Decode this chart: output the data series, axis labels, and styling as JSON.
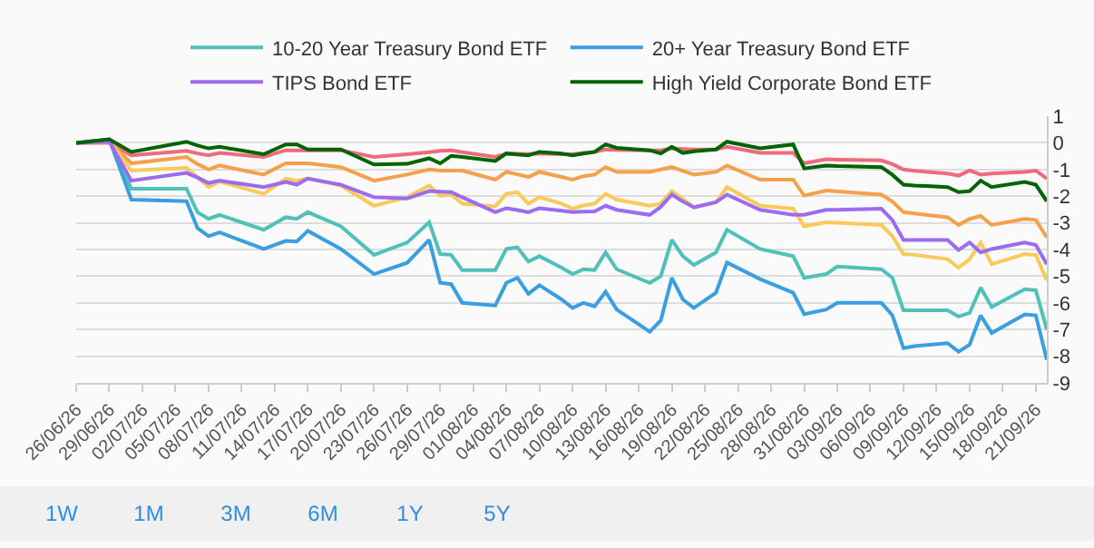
{
  "chart_data": {
    "type": "line",
    "legend": "top",
    "grid": "y",
    "marker": "none",
    "line_style": "solid",
    "annotations": [
      "1W",
      "1M",
      "3M",
      "6M",
      "1Y",
      "5Y"
    ],
    "x": [
      "--06-26",
      "--06-29",
      "--07-01",
      "--07-06",
      "--07-07",
      "--07-08",
      "--07-09",
      "--07-13",
      "--07-15",
      "--07-16",
      "--07-17",
      "--07-20",
      "--07-23",
      "--07-26",
      "--07-28",
      "--07-29",
      "--07-30",
      "--07-31",
      "--08-03",
      "--08-04",
      "--08-05",
      "--08-06",
      "--08-07",
      "--08-09",
      "--08-10",
      "--08-11",
      "--08-12",
      "--08-13",
      "--08-14",
      "--08-17",
      "--08-18",
      "--08-19",
      "--08-20",
      "--08-21",
      "--08-23",
      "--08-24",
      "--08-27",
      "--08-30",
      "--08-31",
      "--09-02",
      "--09-03",
      "--09-07",
      "--09-08",
      "--09-09",
      "--09-10",
      "--09-13",
      "--09-14",
      "--09-15",
      "--09-16",
      "--09-17",
      "--09-20",
      "--09-21",
      "--09-22"
    ],
    "xlim": [
      "--06-26",
      "--09-22"
    ],
    "xticks": [
      {
        "value": "--06-26",
        "label": "26/06/26"
      },
      {
        "value": "--06-29",
        "label": "29/06/26"
      },
      {
        "value": "--07-02",
        "label": "02/07/26"
      },
      {
        "value": "--07-05",
        "label": "05/07/26"
      },
      {
        "value": "--07-08",
        "label": "08/07/26"
      },
      {
        "value": "--07-11",
        "label": "11/07/26"
      },
      {
        "value": "--07-14",
        "label": "14/07/26"
      },
      {
        "value": "--07-17",
        "label": "17/07/26"
      },
      {
        "value": "--07-20",
        "label": "20/07/26"
      },
      {
        "value": "--07-23",
        "label": "23/07/26"
      },
      {
        "value": "--07-26",
        "label": "26/07/26"
      },
      {
        "value": "--07-29",
        "label": "29/07/26"
      },
      {
        "value": "--08-01",
        "label": "01/08/26"
      },
      {
        "value": "--08-04",
        "label": "04/08/26"
      },
      {
        "value": "--08-07",
        "label": "07/08/26"
      },
      {
        "value": "--08-10",
        "label": "10/08/26"
      },
      {
        "value": "--08-13",
        "label": "13/08/26"
      },
      {
        "value": "--08-16",
        "label": "16/08/26"
      },
      {
        "value": "--08-19",
        "label": "19/08/26"
      },
      {
        "value": "--08-22",
        "label": "22/08/26"
      },
      {
        "value": "--08-25",
        "label": "25/08/26"
      },
      {
        "value": "--08-28",
        "label": "28/08/26"
      },
      {
        "value": "--08-31",
        "label": "31/08/26"
      },
      {
        "value": "--09-03",
        "label": "03/09/26"
      },
      {
        "value": "--09-06",
        "label": "06/09/26"
      },
      {
        "value": "--09-09",
        "label": "09/09/26"
      },
      {
        "value": "--09-12",
        "label": "12/09/26"
      },
      {
        "value": "--09-15",
        "label": "15/09/26"
      },
      {
        "value": "--09-18",
        "label": "18/09/26"
      },
      {
        "value": "--09-21",
        "label": "21/09/26"
      }
    ],
    "ylim": [
      -9,
      1
    ],
    "yticks": [
      1,
      0,
      -1,
      -2,
      -3,
      -4,
      -5,
      -6,
      -7,
      -8,
      -9
    ],
    "series": [
      {
        "color": "#ef6a7d",
        "values": [
          0,
          0,
          -0.47,
          -0.3,
          -0.4,
          -0.47,
          -0.38,
          -0.53,
          -0.28,
          -0.28,
          -0.28,
          -0.28,
          -0.53,
          -0.43,
          -0.35,
          -0.3,
          -0.28,
          -0.35,
          -0.53,
          -0.4,
          -0.41,
          -0.42,
          -0.4,
          -0.43,
          -0.43,
          -0.38,
          -0.34,
          -0.25,
          -0.27,
          -0.28,
          -0.28,
          -0.21,
          -0.23,
          -0.25,
          -0.25,
          -0.15,
          -0.38,
          -0.38,
          -0.77,
          -0.62,
          -0.63,
          -0.66,
          -0.8,
          -1.0,
          -1.05,
          -1.15,
          -1.23,
          -1.04,
          -1.19,
          -1.15,
          -1.09,
          -1.04,
          -1.34
        ]
      },
      {
        "color": "#f5a04a",
        "values": [
          0,
          0.05,
          -0.77,
          -0.53,
          -0.8,
          -1.0,
          -0.85,
          -1.19,
          -0.77,
          -0.77,
          -0.77,
          -0.91,
          -1.42,
          -1.19,
          -1.0,
          -1.04,
          -1.04,
          -1.04,
          -1.38,
          -1.09,
          -1.18,
          -1.28,
          -1.09,
          -1.28,
          -1.38,
          -1.25,
          -1.19,
          -0.91,
          -1.09,
          -1.09,
          -1.0,
          -0.91,
          -1.05,
          -1.19,
          -1.09,
          -0.85,
          -1.38,
          -1.38,
          -1.98,
          -1.79,
          -1.82,
          -1.94,
          -2.2,
          -2.6,
          -2.65,
          -2.79,
          -3.08,
          -2.85,
          -2.74,
          -3.08,
          -2.85,
          -2.89,
          -3.55
        ]
      },
      {
        "color": "#f9c95a",
        "values": [
          0,
          0.05,
          -1.04,
          -0.94,
          -1.3,
          -1.66,
          -1.45,
          -1.91,
          -1.34,
          -1.42,
          -1.34,
          -1.6,
          -2.36,
          -2.04,
          -1.6,
          -1.98,
          -1.94,
          -2.28,
          -2.38,
          -1.91,
          -1.85,
          -2.28,
          -2.04,
          -2.28,
          -2.47,
          -2.35,
          -2.28,
          -1.91,
          -2.13,
          -2.36,
          -2.28,
          -1.81,
          -2.1,
          -2.42,
          -2.23,
          -1.66,
          -2.36,
          -2.47,
          -3.13,
          -2.98,
          -3.0,
          -3.08,
          -3.5,
          -4.17,
          -4.2,
          -4.36,
          -4.68,
          -4.36,
          -3.74,
          -4.55,
          -4.17,
          -4.21,
          -5.15
        ]
      },
      {
        "name": "10-20 Year Treasury Bond ETF",
        "color": "#4fc1b9",
        "values": [
          0,
          0.1,
          -1.72,
          -1.72,
          -2.6,
          -2.85,
          -2.7,
          -3.26,
          -2.79,
          -2.85,
          -2.6,
          -3.13,
          -4.2,
          -3.74,
          -2.98,
          -4.17,
          -4.2,
          -4.77,
          -4.77,
          -3.98,
          -3.92,
          -4.45,
          -4.25,
          -4.68,
          -4.92,
          -4.74,
          -4.77,
          -4.11,
          -4.74,
          -5.25,
          -5.0,
          -3.64,
          -4.25,
          -4.58,
          -4.11,
          -3.26,
          -3.98,
          -4.25,
          -5.06,
          -4.92,
          -4.64,
          -4.74,
          -5.06,
          -6.28,
          -6.28,
          -6.28,
          -6.51,
          -6.38,
          -5.43,
          -6.15,
          -5.49,
          -5.53,
          -7.0
        ]
      },
      {
        "name": "20+ Year Treasury Bond ETF",
        "color": "#3a9fe0",
        "values": [
          0,
          0.13,
          -2.13,
          -2.19,
          -3.2,
          -3.5,
          -3.36,
          -3.98,
          -3.68,
          -3.7,
          -3.3,
          -3.98,
          -4.92,
          -4.5,
          -3.64,
          -5.25,
          -5.3,
          -6.0,
          -6.1,
          -5.25,
          -5.06,
          -5.66,
          -5.34,
          -5.87,
          -6.19,
          -6.0,
          -6.13,
          -5.58,
          -6.25,
          -7.08,
          -6.66,
          -5.06,
          -5.87,
          -6.19,
          -5.62,
          -4.49,
          -5.11,
          -5.62,
          -6.42,
          -6.25,
          -6.0,
          -6.0,
          -6.47,
          -7.7,
          -7.62,
          -7.51,
          -7.83,
          -7.57,
          -6.47,
          -7.13,
          -6.43,
          -6.47,
          -8.13
        ]
      },
      {
        "name": "TIPS Bond ETF",
        "color": "#9b6bf2",
        "values": [
          0,
          0.05,
          -1.42,
          -1.13,
          -1.3,
          -1.51,
          -1.42,
          -1.66,
          -1.47,
          -1.57,
          -1.34,
          -1.57,
          -2.04,
          -2.09,
          -1.81,
          -1.83,
          -1.85,
          -2.04,
          -2.6,
          -2.45,
          -2.52,
          -2.6,
          -2.45,
          -2.55,
          -2.6,
          -2.58,
          -2.57,
          -2.36,
          -2.51,
          -2.7,
          -2.4,
          -1.94,
          -2.2,
          -2.42,
          -2.23,
          -1.94,
          -2.51,
          -2.7,
          -2.7,
          -2.51,
          -2.51,
          -2.47,
          -2.9,
          -3.64,
          -3.64,
          -3.64,
          -4.02,
          -3.74,
          -4.11,
          -3.98,
          -3.74,
          -3.83,
          -4.55
        ]
      },
      {
        "name": "High Yield Corporate Bond ETF",
        "color": "#006400",
        "values": [
          0,
          0.13,
          -0.34,
          0.04,
          -0.1,
          -0.21,
          -0.15,
          -0.43,
          -0.06,
          -0.06,
          -0.25,
          -0.25,
          -0.81,
          -0.79,
          -0.58,
          -0.77,
          -0.49,
          -0.53,
          -0.68,
          -0.4,
          -0.44,
          -0.47,
          -0.34,
          -0.4,
          -0.47,
          -0.4,
          -0.34,
          -0.06,
          -0.19,
          -0.28,
          -0.4,
          -0.15,
          -0.38,
          -0.32,
          -0.25,
          0.04,
          -0.21,
          -0.06,
          -0.96,
          -0.85,
          -0.87,
          -0.91,
          -1.2,
          -1.57,
          -1.6,
          -1.66,
          -1.85,
          -1.81,
          -1.42,
          -1.66,
          -1.47,
          -1.57,
          -2.19
        ]
      }
    ]
  }
}
